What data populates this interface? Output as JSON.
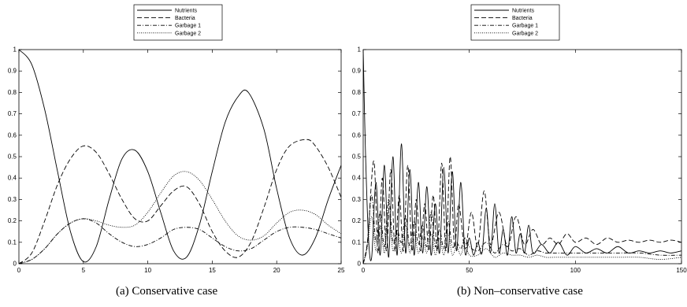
{
  "captions": {
    "a": "(a)  Conservative case",
    "b": "(b)  Non–conservative case"
  },
  "legend": [
    "Nutrients",
    "Bacteria",
    "Garbage 1",
    "Garbage 2"
  ],
  "chart_data": [
    {
      "type": "line",
      "title": "",
      "xlabel": "",
      "ylabel": "",
      "xlim": [
        0,
        25
      ],
      "ylim": [
        0,
        1
      ],
      "xticks": [
        "0",
        "5",
        "10",
        "15",
        "20",
        "25"
      ],
      "yticks": [
        "0",
        "0.1",
        "0.2",
        "0.3",
        "0.4",
        "0.5",
        "0.6",
        "0.7",
        "0.8",
        "0.9",
        "1"
      ],
      "grid": false,
      "legend_position": "top-center",
      "series": [
        {
          "name": "Nutrients",
          "style": "solid",
          "x": [
            0,
            1,
            2,
            3,
            4,
            5,
            6,
            7,
            8,
            9,
            10,
            11,
            12,
            13,
            14,
            15,
            16,
            17,
            17.8,
            19,
            20,
            21,
            22,
            23,
            24,
            25
          ],
          "y": [
            1.0,
            0.93,
            0.72,
            0.43,
            0.15,
            0.01,
            0.08,
            0.3,
            0.49,
            0.53,
            0.43,
            0.24,
            0.06,
            0.03,
            0.18,
            0.43,
            0.66,
            0.78,
            0.8,
            0.63,
            0.35,
            0.12,
            0.04,
            0.12,
            0.3,
            0.46
          ]
        },
        {
          "name": "Bacteria",
          "style": "dashed",
          "x": [
            0,
            1,
            2,
            3,
            4,
            5,
            6,
            7,
            8,
            9,
            10,
            11,
            12,
            13,
            14,
            15,
            16,
            17,
            18,
            19,
            20,
            21,
            22.3,
            23,
            24,
            25
          ],
          "y": [
            0.0,
            0.05,
            0.2,
            0.37,
            0.49,
            0.55,
            0.52,
            0.42,
            0.3,
            0.21,
            0.2,
            0.27,
            0.34,
            0.36,
            0.28,
            0.15,
            0.06,
            0.03,
            0.1,
            0.26,
            0.44,
            0.55,
            0.58,
            0.55,
            0.45,
            0.31
          ]
        },
        {
          "name": "Garbage 1",
          "style": "dashdot",
          "x": [
            0,
            1,
            2,
            3,
            4,
            5,
            6,
            7,
            8,
            9,
            10,
            11,
            12,
            13,
            14,
            15,
            16,
            17,
            18,
            19,
            20,
            21,
            22,
            23,
            24,
            25
          ],
          "y": [
            0.0,
            0.02,
            0.07,
            0.14,
            0.19,
            0.21,
            0.19,
            0.14,
            0.1,
            0.08,
            0.09,
            0.12,
            0.16,
            0.17,
            0.16,
            0.12,
            0.08,
            0.06,
            0.07,
            0.11,
            0.15,
            0.17,
            0.17,
            0.16,
            0.14,
            0.12
          ]
        },
        {
          "name": "Garbage 2",
          "style": "dotted",
          "x": [
            0,
            1,
            2,
            3,
            4,
            5,
            6,
            7,
            8,
            9,
            10,
            11,
            12,
            13,
            14,
            15,
            16,
            17,
            18,
            19,
            20,
            21,
            22,
            23,
            24,
            25
          ],
          "y": [
            0.0,
            0.02,
            0.07,
            0.14,
            0.19,
            0.21,
            0.2,
            0.18,
            0.17,
            0.18,
            0.24,
            0.33,
            0.41,
            0.43,
            0.39,
            0.3,
            0.2,
            0.13,
            0.11,
            0.13,
            0.19,
            0.24,
            0.25,
            0.23,
            0.18,
            0.14
          ]
        }
      ]
    },
    {
      "type": "line",
      "title": "",
      "xlabel": "",
      "ylabel": "",
      "xlim": [
        0,
        150
      ],
      "ylim": [
        0,
        1
      ],
      "xticks": [
        "0",
        "50",
        "100",
        "150"
      ],
      "yticks": [
        "0",
        "0.1",
        "0.2",
        "0.3",
        "0.4",
        "0.5",
        "0.6",
        "0.7",
        "0.8",
        "0.9",
        "1"
      ],
      "grid": false,
      "legend_position": "top-center",
      "series": [
        {
          "name": "Nutrients",
          "style": "solid",
          "x": [
            0,
            1,
            2.5,
            4,
            6,
            8,
            10,
            12,
            14,
            16,
            18,
            20,
            22,
            24,
            26,
            28,
            30,
            32,
            34,
            36,
            38,
            40,
            42,
            44,
            46,
            48,
            50,
            52,
            54,
            56,
            58,
            60,
            62,
            64,
            66,
            68,
            70,
            72,
            74,
            76,
            78,
            80,
            84,
            88,
            92,
            96,
            100,
            105,
            110,
            115,
            120,
            125,
            130,
            135,
            140,
            145,
            150
          ],
          "y": [
            1.0,
            0.55,
            0.12,
            0.03,
            0.38,
            0.04,
            0.46,
            0.03,
            0.5,
            0.04,
            0.56,
            0.05,
            0.44,
            0.04,
            0.38,
            0.05,
            0.36,
            0.04,
            0.28,
            0.05,
            0.45,
            0.05,
            0.43,
            0.06,
            0.38,
            0.05,
            0.12,
            0.04,
            0.1,
            0.05,
            0.26,
            0.05,
            0.28,
            0.05,
            0.16,
            0.04,
            0.22,
            0.05,
            0.14,
            0.05,
            0.18,
            0.05,
            0.09,
            0.05,
            0.1,
            0.04,
            0.08,
            0.05,
            0.07,
            0.05,
            0.08,
            0.05,
            0.06,
            0.05,
            0.06,
            0.05,
            0.06
          ]
        },
        {
          "name": "Bacteria",
          "style": "dashed",
          "x": [
            0,
            2,
            5,
            7,
            9,
            11,
            13,
            15,
            17,
            19,
            21,
            23,
            25,
            27,
            29,
            31,
            33,
            35,
            37,
            39,
            41,
            43,
            45,
            48,
            51,
            54,
            57,
            60,
            64,
            68,
            72,
            76,
            80,
            84,
            88,
            92,
            96,
            100,
            105,
            110,
            115,
            120,
            125,
            130,
            135,
            140,
            145,
            150
          ],
          "y": [
            0.0,
            0.1,
            0.48,
            0.05,
            0.4,
            0.06,
            0.44,
            0.06,
            0.32,
            0.06,
            0.46,
            0.06,
            0.3,
            0.06,
            0.28,
            0.06,
            0.32,
            0.06,
            0.47,
            0.06,
            0.5,
            0.08,
            0.28,
            0.07,
            0.24,
            0.08,
            0.34,
            0.09,
            0.24,
            0.08,
            0.22,
            0.09,
            0.16,
            0.09,
            0.12,
            0.09,
            0.14,
            0.1,
            0.12,
            0.09,
            0.12,
            0.1,
            0.11,
            0.1,
            0.11,
            0.1,
            0.11,
            0.1
          ]
        },
        {
          "name": "Garbage 1",
          "style": "dashdot",
          "x": [
            0,
            2,
            4,
            6,
            8,
            10,
            12,
            14,
            16,
            18,
            20,
            22,
            24,
            26,
            28,
            30,
            32,
            34,
            36,
            38,
            40,
            42,
            44,
            46,
            48,
            50,
            54,
            58,
            62,
            66,
            70,
            74,
            78,
            82,
            86,
            90,
            95,
            100,
            110,
            120,
            130,
            140,
            150
          ],
          "y": [
            0.0,
            0.1,
            0.32,
            0.1,
            0.24,
            0.08,
            0.3,
            0.1,
            0.16,
            0.1,
            0.22,
            0.08,
            0.2,
            0.09,
            0.18,
            0.08,
            0.24,
            0.08,
            0.16,
            0.07,
            0.2,
            0.08,
            0.1,
            0.07,
            0.12,
            0.08,
            0.06,
            0.1,
            0.05,
            0.09,
            0.06,
            0.07,
            0.04,
            0.06,
            0.05,
            0.05,
            0.05,
            0.05,
            0.05,
            0.05,
            0.05,
            0.04,
            0.04
          ]
        },
        {
          "name": "Garbage 2",
          "style": "dotted",
          "x": [
            0,
            2,
            4,
            6,
            8,
            10,
            12,
            14,
            16,
            18,
            20,
            22,
            24,
            26,
            28,
            30,
            32,
            34,
            36,
            38,
            40,
            42,
            44,
            46,
            48,
            50,
            54,
            58,
            62,
            66,
            70,
            74,
            78,
            82,
            86,
            90,
            95,
            100,
            110,
            120,
            130,
            140,
            150
          ],
          "y": [
            0.0,
            0.08,
            0.22,
            0.06,
            0.18,
            0.05,
            0.24,
            0.06,
            0.14,
            0.05,
            0.18,
            0.05,
            0.14,
            0.05,
            0.12,
            0.05,
            0.14,
            0.04,
            0.12,
            0.04,
            0.14,
            0.04,
            0.08,
            0.04,
            0.1,
            0.04,
            0.04,
            0.07,
            0.03,
            0.05,
            0.04,
            0.04,
            0.03,
            0.04,
            0.03,
            0.03,
            0.03,
            0.03,
            0.03,
            0.03,
            0.03,
            0.02,
            0.03
          ]
        }
      ]
    }
  ]
}
